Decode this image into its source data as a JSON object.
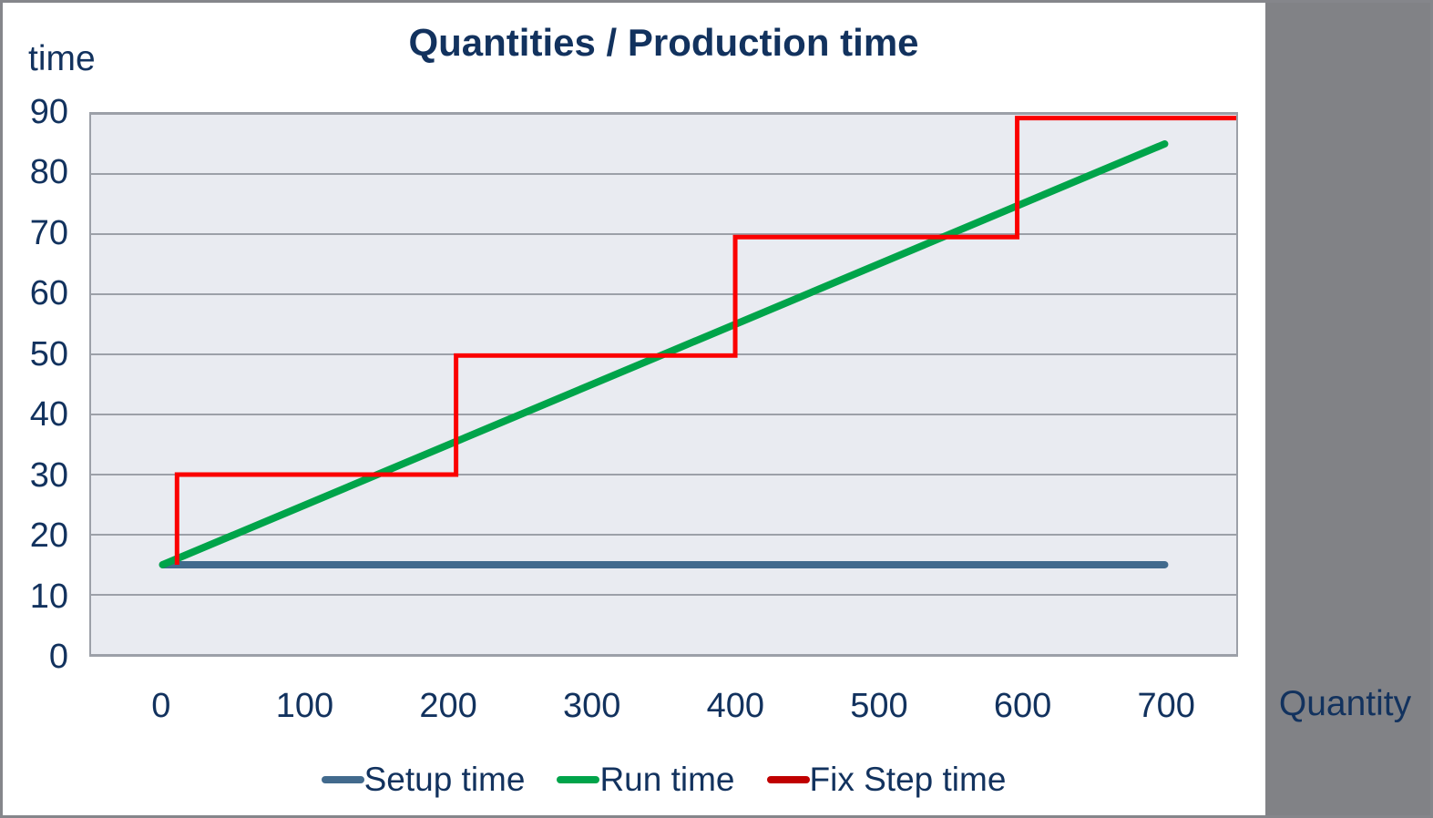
{
  "chart_data": {
    "type": "line",
    "title": "Quantities / Production time",
    "xlabel": "Quantity",
    "ylabel": "time",
    "xlim": [
      -50,
      750
    ],
    "ylim": [
      0,
      90
    ],
    "x_ticks": [
      0,
      100,
      200,
      300,
      400,
      500,
      600,
      700
    ],
    "y_ticks": [
      0,
      10,
      20,
      30,
      40,
      50,
      60,
      70,
      80,
      90
    ],
    "grid": "horizontal",
    "legend_position": "bottom",
    "series": [
      {
        "name": "Setup time",
        "color": "#426A8D",
        "legend_color": "#426A8D",
        "stroke_width": 8,
        "linecap": "round",
        "points": [
          [
            0,
            15
          ],
          [
            700,
            15
          ]
        ]
      },
      {
        "name": "Run time",
        "color": "#00A44A",
        "legend_color": "#00A44A",
        "stroke_width": 8,
        "linecap": "round",
        "points": [
          [
            0,
            15
          ],
          [
            700,
            85
          ]
        ]
      },
      {
        "name": "Fix Step time",
        "color": "#FB0000",
        "legend_color": "#C00000",
        "stroke_width": 5,
        "linecap": "butt",
        "points": [
          [
            10,
            15
          ],
          [
            10,
            30
          ],
          [
            205,
            30
          ],
          [
            205,
            49.8
          ],
          [
            400,
            49.8
          ],
          [
            400,
            69.5
          ],
          [
            597,
            69.5
          ],
          [
            597,
            89.3
          ],
          [
            750,
            89.3
          ]
        ]
      }
    ]
  },
  "colors": {
    "text_navy": "#12325E",
    "plot_background": "#E9EBF1",
    "gridline": "#9CA0A8",
    "side_panel_gray": "#818286",
    "frame_border": "#85868B",
    "chart_background": "#FFFFFF"
  }
}
